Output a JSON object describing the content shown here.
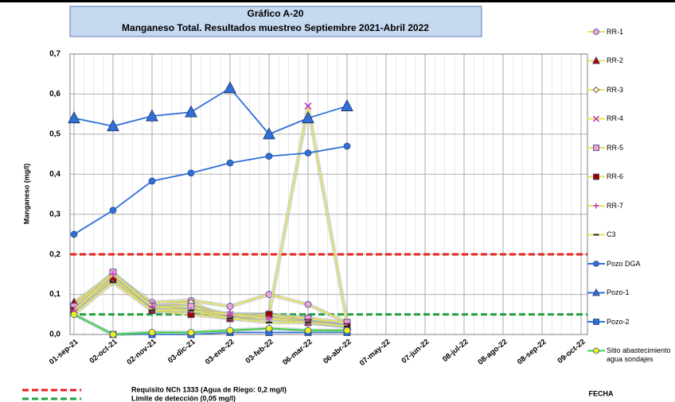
{
  "chart_data": {
    "type": "line",
    "title": "Gráfico A-20",
    "subtitle": "Manganeso Total. Resultados muestreo Septiembre 2021-Abril 2022",
    "y_label": "Manganeso (mg/l)",
    "x_label": "FECHA",
    "categories": [
      "01-sep-21",
      "02-oct-21",
      "02-nov-21",
      "03-dic-21",
      "03-ene-22",
      "03-feb-22",
      "06-mar-22",
      "06-abr-22",
      "07-may-22",
      "07-jun-22",
      "08-jul-22",
      "08-ago-22",
      "08-sep-22",
      "09-oct-22"
    ],
    "ylim": [
      0,
      0.7
    ],
    "yticks": [
      {
        "value": 0,
        "label": "0,0"
      },
      {
        "value": 0.1,
        "label": "0,1"
      },
      {
        "value": 0.2,
        "label": "0,2"
      },
      {
        "value": 0.3,
        "label": "0,3"
      },
      {
        "value": 0.4,
        "label": "0,4"
      },
      {
        "value": 0.5,
        "label": "0,5"
      },
      {
        "value": 0.6,
        "label": "0,6"
      },
      {
        "value": 0.7,
        "label": "0,7"
      }
    ],
    "grid": true,
    "legend": "right",
    "series": [
      {
        "name": "RR-1",
        "color": "#e8e060",
        "marker": "circle",
        "marker_color": "#f0a0d8",
        "values": [
          0.07,
          0.15,
          0.08,
          0.085,
          0.07,
          0.1,
          0.075,
          0.03,
          null,
          null,
          null,
          null,
          null,
          null
        ]
      },
      {
        "name": "RR-2",
        "color": "#e8e060",
        "marker": "triangle",
        "marker_color": "#c00000",
        "values": [
          0.08,
          0.15,
          0.07,
          0.06,
          0.05,
          0.05,
          0.04,
          0.02,
          null,
          null,
          null,
          null,
          null,
          null
        ]
      },
      {
        "name": "RR-3",
        "color": "#e8e060",
        "marker": "diamond",
        "marker_color": "#8a6a40",
        "values": [
          0.06,
          0.14,
          0.07,
          0.08,
          0.04,
          0.04,
          0.04,
          0.02,
          null,
          null,
          null,
          null,
          null,
          null
        ]
      },
      {
        "name": "RR-4",
        "color": "#e8e060",
        "marker": "x",
        "marker_color": "#c030c0",
        "values": [
          0.06,
          0.14,
          0.07,
          0.07,
          0.05,
          0.05,
          0.57,
          0.03,
          null,
          null,
          null,
          null,
          null,
          null
        ]
      },
      {
        "name": "RR-5",
        "color": "#e8e060",
        "marker": "square",
        "marker_color": "#f0a0d8",
        "values": [
          0.07,
          0.155,
          0.07,
          0.07,
          0.04,
          0.05,
          0.04,
          0.03,
          null,
          null,
          null,
          null,
          null,
          null
        ]
      },
      {
        "name": "RR-6",
        "color": "#e8e060",
        "marker": "square",
        "marker_color": "#a00000",
        "values": [
          0.06,
          0.14,
          0.06,
          0.05,
          0.04,
          0.05,
          0.03,
          0.02,
          null,
          null,
          null,
          null,
          null,
          null
        ]
      },
      {
        "name": "RR-7",
        "color": "#e8e060",
        "marker": "plus",
        "marker_color": "#d030d0",
        "values": [
          0.06,
          0.15,
          0.07,
          0.06,
          0.05,
          0.04,
          0.03,
          0.02,
          null,
          null,
          null,
          null,
          null,
          null
        ]
      },
      {
        "name": "C3",
        "color": "#e8e060",
        "marker": "dash",
        "marker_color": "#202020",
        "values": [
          0.05,
          0.13,
          0.06,
          0.06,
          0.04,
          0.03,
          0.03,
          0.02,
          null,
          null,
          null,
          null,
          null,
          null
        ]
      },
      {
        "name": "Pozo DGA",
        "color": "#2e6fd8",
        "marker": "circle",
        "marker_color": "#2e6fd8",
        "values": [
          0.25,
          0.31,
          0.383,
          0.403,
          0.428,
          0.445,
          0.453,
          0.47,
          null,
          null,
          null,
          null,
          null,
          null
        ]
      },
      {
        "name": "Pozo-1",
        "color": "#2e6fd8",
        "marker": "triangle",
        "marker_color": "#2e6fd8",
        "values": [
          0.54,
          0.52,
          0.545,
          0.555,
          0.615,
          0.5,
          0.54,
          0.57,
          null,
          null,
          null,
          null,
          null,
          null
        ]
      },
      {
        "name": "Pozo-2",
        "color": "#2e6fd8",
        "marker": "square",
        "marker_color": "#2e6fd8",
        "values": [
          null,
          0.0,
          0.0,
          0.0,
          0.005,
          0.005,
          0.005,
          0.005,
          null,
          null,
          null,
          null,
          null,
          null
        ]
      },
      {
        "name": "Sitio abastecimiento agua sondajes",
        "color": "#40d040",
        "marker": "circle",
        "marker_color": "#f0f020",
        "values": [
          0.05,
          0.0,
          0.005,
          0.005,
          0.01,
          0.015,
          0.01,
          0.01,
          null,
          null,
          null,
          null,
          null,
          null
        ]
      }
    ],
    "reference_lines": [
      {
        "label": "Requisito NCh 1333 (Agua de Riego: 0,2 mg/l)",
        "value": 0.2,
        "color": "#e82020"
      },
      {
        "label": "Límite de detección (0,05 mg/l)",
        "value": 0.05,
        "color": "#20a040"
      }
    ]
  }
}
